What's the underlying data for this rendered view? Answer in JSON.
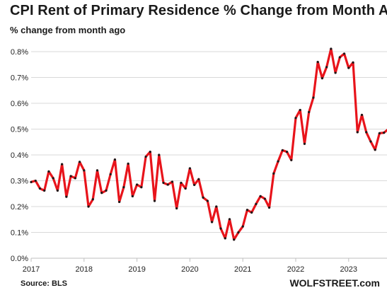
{
  "title": "CPI Rent of Primary  Residence % Change  from Month Ago",
  "subtitle": "% change from month ago",
  "source": "Source: BLS",
  "brand": "WOLFSTREET.com",
  "colors": {
    "line": "#e8141b",
    "marker": "#1a1a1a",
    "grid": "#d9d9d9",
    "axis": "#bfbfbf"
  },
  "chart_data": {
    "type": "line",
    "title": "CPI Rent of Primary  Residence % Change  from Month Ago",
    "ylabel": "% change from month ago",
    "xlabel": "",
    "ylim": [
      0,
      0.8
    ],
    "y_ticks": [
      0,
      0.1,
      0.2,
      0.3,
      0.4,
      0.5,
      0.6,
      0.7,
      0.8
    ],
    "y_tick_labels": [
      "0.0%",
      "0.1%",
      "0.2%",
      "0.3%",
      "0.4%",
      "0.5%",
      "0.6%",
      "0.7%",
      "0.8%"
    ],
    "x_tick_labels": [
      "2017",
      "2018",
      "2019",
      "2020",
      "2021",
      "2022",
      "2023"
    ],
    "grid": "horizontal",
    "x_start": "2017-01",
    "series": [
      {
        "name": "",
        "values": [
          0.295,
          0.3,
          0.27,
          0.262,
          0.336,
          0.31,
          0.262,
          0.364,
          0.238,
          0.318,
          0.31,
          0.373,
          0.34,
          0.2,
          0.228,
          0.34,
          0.253,
          0.262,
          0.325,
          0.382,
          0.218,
          0.275,
          0.366,
          0.24,
          0.285,
          0.275,
          0.393,
          0.412,
          0.222,
          0.4,
          0.292,
          0.285,
          0.296,
          0.193,
          0.292,
          0.27,
          0.348,
          0.284,
          0.306,
          0.235,
          0.222,
          0.14,
          0.2,
          0.115,
          0.077,
          0.151,
          0.072,
          0.1,
          0.123,
          0.187,
          0.177,
          0.21,
          0.24,
          0.23,
          0.196,
          0.328,
          0.375,
          0.418,
          0.412,
          0.38,
          0.543,
          0.574,
          0.443,
          0.566,
          0.622,
          0.76,
          0.697,
          0.74,
          0.811,
          0.718,
          0.778,
          0.792,
          0.737,
          0.758,
          0.488,
          0.555,
          0.488,
          0.452,
          0.42,
          0.484,
          0.486,
          0.5
        ]
      }
    ]
  }
}
